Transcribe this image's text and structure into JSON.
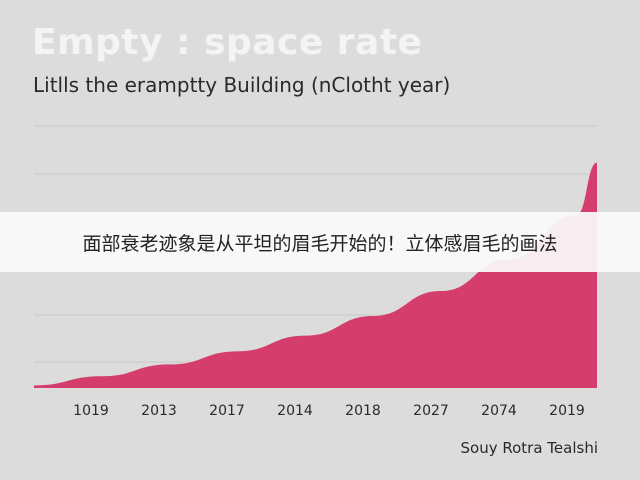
{
  "chart_data": {
    "type": "area",
    "title": "Empty : space rate",
    "subtitle": "Litlls the eramptty Building (nClotht year)",
    "categories": [
      "1019",
      "2013",
      "2017",
      "2014",
      "2018",
      "2027",
      "2074",
      "2019"
    ],
    "x": [
      0,
      1,
      2,
      3,
      4,
      5,
      6,
      7,
      8,
      8.3
    ],
    "y": [
      1,
      4.5,
      9,
      14,
      20,
      27.5,
      37,
      49,
      66,
      86
    ],
    "ylim": [
      0,
      100
    ],
    "grid": true,
    "color": "#d43d6c",
    "source": "Souy Rotra Tealshi"
  },
  "banner": {
    "text": "面部衰老迹象是从平坦的眉毛开始的！立体感眉毛的画法"
  }
}
